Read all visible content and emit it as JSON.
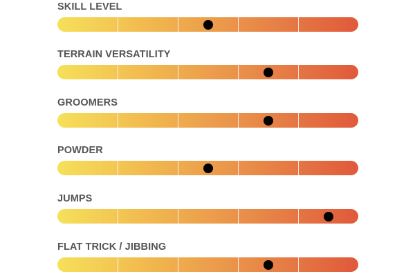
{
  "ratings": [
    {
      "label": "SKILL LEVEL",
      "level": 0.5
    },
    {
      "label": "TERRAIN VERSATILITY",
      "level": 0.7
    },
    {
      "label": "GROOMERS",
      "level": 0.7
    },
    {
      "label": "POWDER",
      "level": 0.5
    },
    {
      "label": "JUMPS",
      "level": 0.9
    },
    {
      "label": "FLAT TRICK / JIBBING",
      "level": 0.7
    }
  ],
  "segments": 5,
  "colors": {
    "label": "#555555",
    "gradient_start": "#f6e05a",
    "gradient_mid": "#e98f4a",
    "gradient_end": "#e0593b",
    "marker": "#000000",
    "divider": "#ffffff"
  }
}
